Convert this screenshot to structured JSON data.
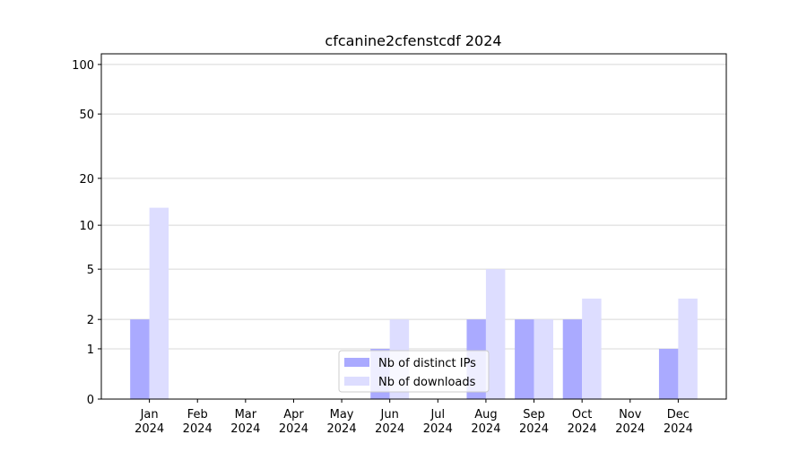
{
  "chart_data": {
    "type": "bar",
    "title": "cfcanine2cfenstcdf 2024",
    "categories": [
      "Jan 2024",
      "Feb 2024",
      "Mar 2024",
      "Apr 2024",
      "May 2024",
      "Jun 2024",
      "Jul 2024",
      "Aug 2024",
      "Sep 2024",
      "Oct 2024",
      "Nov 2024",
      "Dec 2024"
    ],
    "series": [
      {
        "name": "Nb of distinct IPs",
        "color": "#aaaaff",
        "values": [
          2,
          0,
          0,
          0,
          0,
          1,
          0,
          2,
          2,
          2,
          0,
          1
        ]
      },
      {
        "name": "Nb of downloads",
        "color": "#ddddff",
        "values": [
          13,
          0,
          0,
          0,
          0,
          2,
          0,
          5,
          2,
          3,
          0,
          3
        ]
      }
    ],
    "yscale": "log1p",
    "ylim": [
      0,
      116
    ],
    "yticks": [
      0,
      1,
      2,
      5,
      10,
      20,
      50,
      100
    ],
    "grid": true,
    "legend": "lower center"
  }
}
